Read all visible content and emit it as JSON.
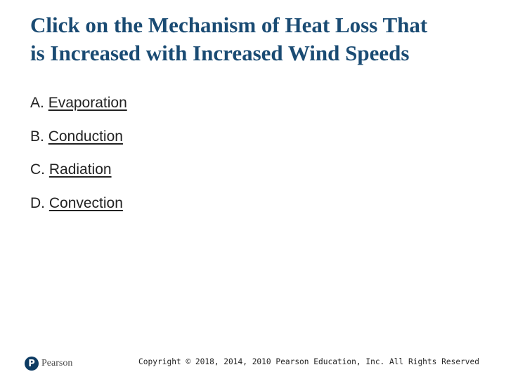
{
  "slide": {
    "title_line1": "Click on the Mechanism of Heat Loss That",
    "title_line2": "is Increased with Increased Wind Speeds",
    "options": [
      {
        "letter": "A.",
        "label": "Evaporation"
      },
      {
        "letter": "B.",
        "label": "Conduction"
      },
      {
        "letter": "C.",
        "label": "Radiation"
      },
      {
        "letter": "D.",
        "label": "Convection"
      }
    ]
  },
  "footer": {
    "logo_icon": "pearson-logo-icon",
    "logo_mark": "P",
    "logo_text": "Pearson",
    "copyright": "Copyright © 2018, 2014, 2010 Pearson Education, Inc. All Rights Reserved"
  },
  "colors": {
    "title": "#1a4b73",
    "text": "#222222",
    "logo": "#0d3b63"
  }
}
